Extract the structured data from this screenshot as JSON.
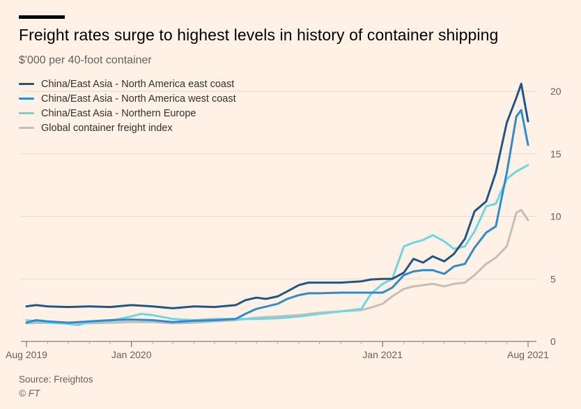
{
  "header": {
    "title": "Freight rates surge to highest levels in history of container shipping",
    "subtitle": "$'000 per 40-foot container"
  },
  "footer": {
    "source": "Source: Freightos",
    "credit": "© FT"
  },
  "chart_data": {
    "type": "line",
    "title": "Freight rates surge to highest levels in history of container shipping",
    "subtitle": "$'000 per 40-foot container",
    "xlabel": "",
    "ylabel": "",
    "x_tick_labels": [
      "Aug 2019",
      "Jan 2020",
      "Jan 2021",
      "Aug 2021"
    ],
    "x_tick_dates": [
      "2019-08-01",
      "2020-01-01",
      "2021-01-01",
      "2021-08-01"
    ],
    "y_ticks": [
      0,
      5,
      10,
      15,
      20
    ],
    "ylim": [
      0,
      22
    ],
    "grid": true,
    "legend_position": "top-left",
    "series": [
      {
        "name": "China/East Asia - North America east coast",
        "color": "#1E558C",
        "points": [
          [
            "2019-08-01",
            2.8
          ],
          [
            "2019-08-15",
            2.9
          ],
          [
            "2019-09-01",
            2.8
          ],
          [
            "2019-10-01",
            2.75
          ],
          [
            "2019-11-01",
            2.8
          ],
          [
            "2019-12-01",
            2.75
          ],
          [
            "2020-01-01",
            2.9
          ],
          [
            "2020-02-01",
            2.8
          ],
          [
            "2020-03-01",
            2.65
          ],
          [
            "2020-04-01",
            2.8
          ],
          [
            "2020-05-01",
            2.75
          ],
          [
            "2020-06-01",
            2.9
          ],
          [
            "2020-06-15",
            3.3
          ],
          [
            "2020-07-01",
            3.5
          ],
          [
            "2020-07-15",
            3.4
          ],
          [
            "2020-08-01",
            3.6
          ],
          [
            "2020-08-15",
            4.0
          ],
          [
            "2020-09-01",
            4.5
          ],
          [
            "2020-09-15",
            4.7
          ],
          [
            "2020-10-01",
            4.7
          ],
          [
            "2020-11-01",
            4.7
          ],
          [
            "2020-12-01",
            4.8
          ],
          [
            "2020-12-15",
            4.95
          ],
          [
            "2021-01-01",
            5.0
          ],
          [
            "2021-01-15",
            5.0
          ],
          [
            "2021-02-01",
            5.5
          ],
          [
            "2021-02-15",
            6.6
          ],
          [
            "2021-03-01",
            6.3
          ],
          [
            "2021-03-15",
            6.8
          ],
          [
            "2021-04-01",
            6.4
          ],
          [
            "2021-04-15",
            7.0
          ],
          [
            "2021-05-01",
            8.2
          ],
          [
            "2021-05-15",
            10.4
          ],
          [
            "2021-06-01",
            11.2
          ],
          [
            "2021-06-15",
            13.5
          ],
          [
            "2021-07-01",
            17.5
          ],
          [
            "2021-07-15",
            19.5
          ],
          [
            "2021-07-22",
            20.6
          ],
          [
            "2021-08-01",
            17.6
          ]
        ]
      },
      {
        "name": "China/East Asia - North America west coast",
        "color": "#2E8BD0",
        "points": [
          [
            "2019-08-01",
            1.5
          ],
          [
            "2019-08-15",
            1.7
          ],
          [
            "2019-09-01",
            1.6
          ],
          [
            "2019-10-01",
            1.5
          ],
          [
            "2019-11-01",
            1.6
          ],
          [
            "2019-12-01",
            1.7
          ],
          [
            "2020-01-01",
            1.75
          ],
          [
            "2020-02-01",
            1.7
          ],
          [
            "2020-03-01",
            1.55
          ],
          [
            "2020-04-01",
            1.65
          ],
          [
            "2020-05-01",
            1.7
          ],
          [
            "2020-06-01",
            1.8
          ],
          [
            "2020-06-15",
            2.2
          ],
          [
            "2020-07-01",
            2.6
          ],
          [
            "2020-08-01",
            3.0
          ],
          [
            "2020-08-15",
            3.4
          ],
          [
            "2020-09-01",
            3.7
          ],
          [
            "2020-09-15",
            3.85
          ],
          [
            "2020-10-01",
            3.85
          ],
          [
            "2020-11-01",
            3.9
          ],
          [
            "2020-12-01",
            3.9
          ],
          [
            "2021-01-01",
            3.9
          ],
          [
            "2021-01-15",
            4.3
          ],
          [
            "2021-02-01",
            5.3
          ],
          [
            "2021-02-15",
            5.6
          ],
          [
            "2021-03-01",
            5.7
          ],
          [
            "2021-03-15",
            5.7
          ],
          [
            "2021-04-01",
            5.4
          ],
          [
            "2021-04-15",
            6.0
          ],
          [
            "2021-05-01",
            6.2
          ],
          [
            "2021-05-15",
            7.5
          ],
          [
            "2021-06-01",
            8.7
          ],
          [
            "2021-06-15",
            9.2
          ],
          [
            "2021-07-01",
            13.5
          ],
          [
            "2021-07-15",
            18.0
          ],
          [
            "2021-07-22",
            18.5
          ],
          [
            "2021-08-01",
            15.7
          ]
        ]
      },
      {
        "name": "China/East Asia - Northern Europe",
        "color": "#6DD6E5",
        "points": [
          [
            "2019-08-01",
            1.7
          ],
          [
            "2019-09-01",
            1.5
          ],
          [
            "2019-10-01",
            1.4
          ],
          [
            "2019-10-15",
            1.3
          ],
          [
            "2019-11-01",
            1.55
          ],
          [
            "2019-12-01",
            1.65
          ],
          [
            "2020-01-01",
            2.0
          ],
          [
            "2020-01-15",
            2.2
          ],
          [
            "2020-02-01",
            2.1
          ],
          [
            "2020-03-01",
            1.8
          ],
          [
            "2020-04-01",
            1.7
          ],
          [
            "2020-05-01",
            1.8
          ],
          [
            "2020-06-01",
            1.8
          ],
          [
            "2020-07-01",
            1.8
          ],
          [
            "2020-08-01",
            1.85
          ],
          [
            "2020-09-01",
            2.0
          ],
          [
            "2020-10-01",
            2.2
          ],
          [
            "2020-11-01",
            2.4
          ],
          [
            "2020-12-01",
            2.6
          ],
          [
            "2020-12-15",
            3.8
          ],
          [
            "2021-01-01",
            4.6
          ],
          [
            "2021-01-15",
            5.0
          ],
          [
            "2021-02-01",
            7.6
          ],
          [
            "2021-02-15",
            7.9
          ],
          [
            "2021-03-01",
            8.1
          ],
          [
            "2021-03-15",
            8.5
          ],
          [
            "2021-04-01",
            8.0
          ],
          [
            "2021-04-15",
            7.4
          ],
          [
            "2021-05-01",
            7.6
          ],
          [
            "2021-05-15",
            8.8
          ],
          [
            "2021-06-01",
            10.8
          ],
          [
            "2021-06-15",
            11.0
          ],
          [
            "2021-07-01",
            13.0
          ],
          [
            "2021-07-15",
            13.6
          ],
          [
            "2021-08-01",
            14.1
          ]
        ]
      },
      {
        "name": "Global container freight index",
        "color": "#C5BEB6",
        "points": [
          [
            "2019-08-01",
            1.45
          ],
          [
            "2019-09-01",
            1.5
          ],
          [
            "2019-10-01",
            1.45
          ],
          [
            "2019-11-01",
            1.45
          ],
          [
            "2019-12-01",
            1.5
          ],
          [
            "2020-01-01",
            1.55
          ],
          [
            "2020-02-01",
            1.55
          ],
          [
            "2020-03-01",
            1.45
          ],
          [
            "2020-04-01",
            1.5
          ],
          [
            "2020-05-01",
            1.6
          ],
          [
            "2020-06-01",
            1.7
          ],
          [
            "2020-07-01",
            1.9
          ],
          [
            "2020-08-01",
            2.0
          ],
          [
            "2020-09-01",
            2.1
          ],
          [
            "2020-10-01",
            2.3
          ],
          [
            "2020-11-01",
            2.4
          ],
          [
            "2020-12-01",
            2.5
          ],
          [
            "2020-12-15",
            2.7
          ],
          [
            "2021-01-01",
            3.0
          ],
          [
            "2021-01-15",
            3.6
          ],
          [
            "2021-02-01",
            4.2
          ],
          [
            "2021-02-15",
            4.4
          ],
          [
            "2021-03-01",
            4.5
          ],
          [
            "2021-03-15",
            4.6
          ],
          [
            "2021-04-01",
            4.4
          ],
          [
            "2021-04-15",
            4.6
          ],
          [
            "2021-05-01",
            4.7
          ],
          [
            "2021-05-15",
            5.3
          ],
          [
            "2021-06-01",
            6.2
          ],
          [
            "2021-06-15",
            6.7
          ],
          [
            "2021-07-01",
            7.6
          ],
          [
            "2021-07-15",
            10.3
          ],
          [
            "2021-07-22",
            10.5
          ],
          [
            "2021-08-01",
            9.7
          ]
        ]
      }
    ]
  }
}
